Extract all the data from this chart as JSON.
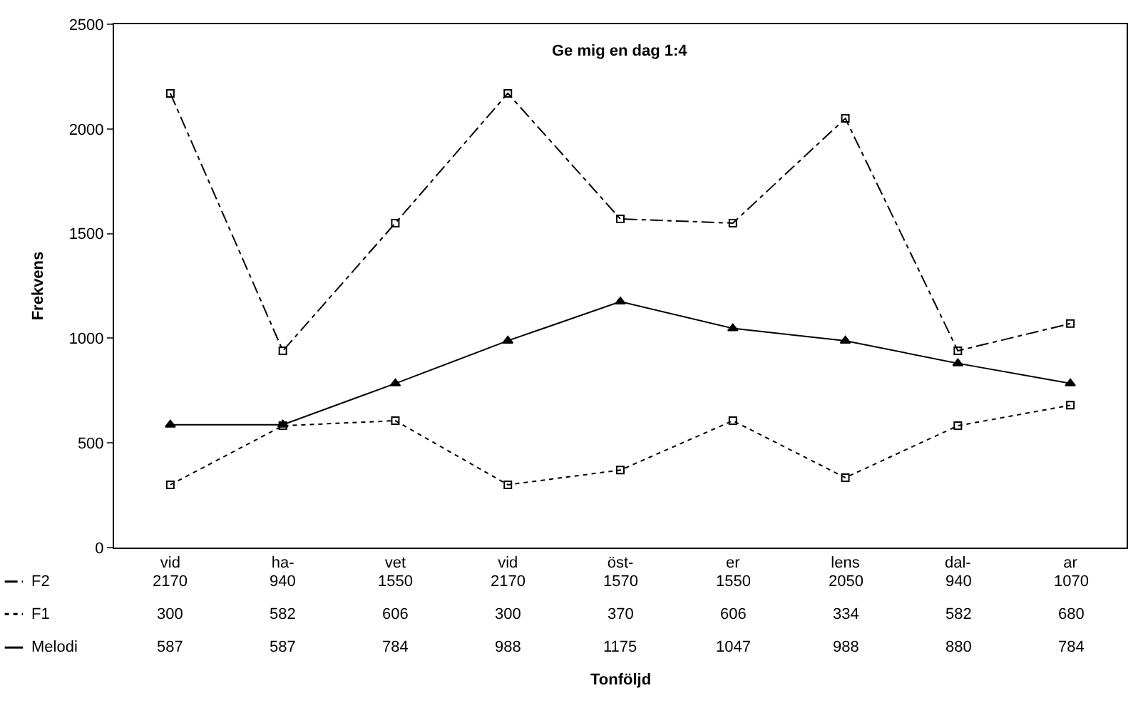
{
  "chart_data": {
    "type": "line",
    "title": "Ge mig en dag 1:4",
    "annotations": [
      "Tonföljd"
    ],
    "ylabel": "Frekvens",
    "categories": [
      "vid",
      "ha-",
      "vet",
      "vid",
      "öst-",
      "er",
      "lens",
      "dal-",
      "ar"
    ],
    "series": [
      {
        "name": "F2",
        "color": "#000000",
        "line_style": "dashdot",
        "marker": "square",
        "values": [
          2170,
          940,
          1550,
          2170,
          1570,
          1550,
          2050,
          940,
          1070
        ]
      },
      {
        "name": "F1",
        "color": "#000000",
        "line_style": "dotted",
        "marker": "square",
        "values": [
          300,
          582,
          606,
          300,
          370,
          606,
          334,
          582,
          680
        ]
      },
      {
        "name": "Melodi",
        "color": "#000000",
        "line_style": "solid",
        "marker": "triangle",
        "values": [
          587,
          587,
          784,
          988,
          1175,
          1047,
          988,
          880,
          784
        ]
      }
    ],
    "ylim": [
      0,
      2500
    ],
    "yticks": [
      0,
      500,
      1000,
      1500,
      2000,
      2500
    ],
    "legend": "bottom left",
    "data_labels": true
  }
}
